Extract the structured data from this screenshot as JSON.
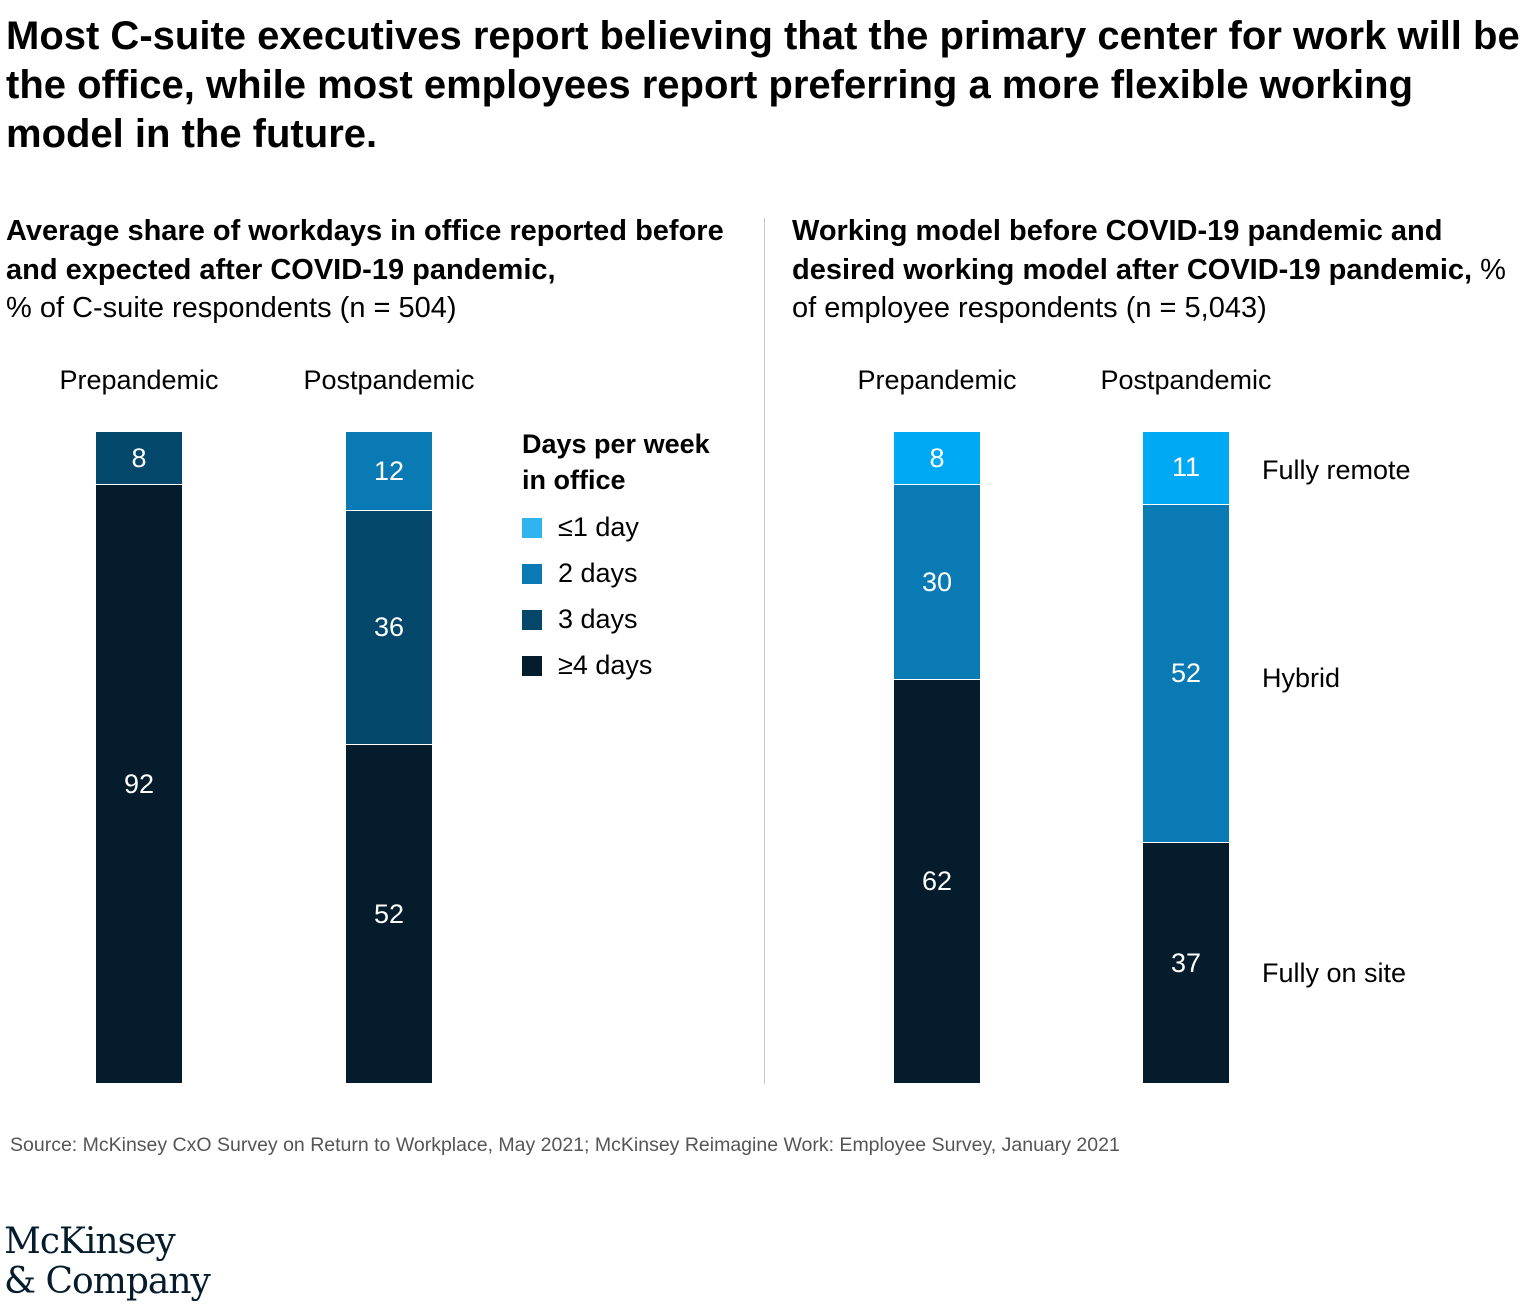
{
  "title": "Most C-suite executives report believing that the primary center for work will be the office, while most employees report preferring a more flexible working model in the future.",
  "colors": {
    "le1": "#2eb5f0",
    "d2": "#0a7ab4",
    "d3": "#03476b",
    "ge4": "#051c2c",
    "fully_remote": "#00a9f4",
    "hybrid": "#0a7ab4",
    "fully_on_site": "#051c2c"
  },
  "chart_data": [
    {
      "type": "bar",
      "stacked": true,
      "title_bold": "Average share of workdays in office reported before and expected after COVID-19 pandemic,",
      "title_regular": "% of C-suite respondents (n = 504)",
      "categories": [
        "Prepandemic",
        "Postpandemic"
      ],
      "legend_title": "Days per week in office",
      "series": [
        {
          "name": "≤1 day",
          "values": [
            0,
            0
          ]
        },
        {
          "name": "2 days",
          "values": [
            0,
            12
          ]
        },
        {
          "name": "3 days",
          "values": [
            8,
            36
          ]
        },
        {
          "name": "≥4 days",
          "values": [
            92,
            52
          ]
        }
      ],
      "ylim": [
        0,
        100
      ]
    },
    {
      "type": "bar",
      "stacked": true,
      "title_bold": "Working model before COVID-19 pandemic and desired working model after COVID-19 pandemic,",
      "title_regular": "% of employee respondents (n = 5,043)",
      "categories": [
        "Prepandemic",
        "Postpandemic"
      ],
      "series": [
        {
          "name": "Fully remote",
          "values": [
            8,
            11
          ]
        },
        {
          "name": "Hybrid",
          "values": [
            30,
            52
          ]
        },
        {
          "name": "Fully on site",
          "values": [
            62,
            37
          ]
        }
      ],
      "ylim": [
        0,
        100
      ]
    }
  ],
  "source": "Source: McKinsey CxO Survey on Return to Workplace, May 2021; McKinsey Reimagine Work: Employee Survey, January 2021",
  "logo": {
    "line1": "McKinsey",
    "line2": "& Company"
  }
}
